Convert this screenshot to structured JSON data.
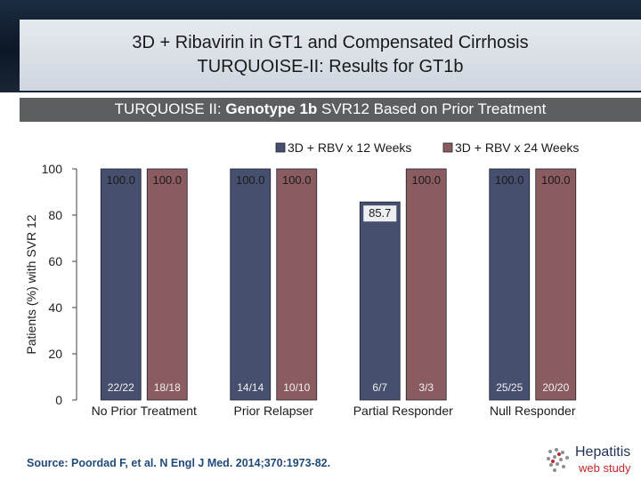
{
  "header": {
    "title_line1": "3D + Ribavirin in GT1 and Compensated Cirrhosis",
    "title_line2": "TURQUOISE-II: Results for GT1b"
  },
  "subtitle": {
    "prefix": "TURQUOISE II: ",
    "bold": "Genotype 1b",
    "suffix": " SVR12 Based on Prior Treatment"
  },
  "chart_data": {
    "type": "bar",
    "title": "TURQUOISE II: Genotype 1b SVR12 Based on Prior Treatment",
    "xlabel": "",
    "ylabel": "Patients (%) with SVR 12",
    "ylim": [
      0,
      100
    ],
    "yticks": [
      0,
      20,
      40,
      60,
      80,
      100
    ],
    "categories": [
      "No Prior Treatment",
      "Prior Relapser",
      "Partial Responder",
      "Null Responder"
    ],
    "series": [
      {
        "name": "3D + RBV x 12 Weeks",
        "color": "#474f6e",
        "values": [
          100.0,
          100.0,
          85.7,
          100.0
        ],
        "labels": [
          "100.0",
          "100.0",
          "85.7",
          "100.0"
        ],
        "counts": [
          "22/22",
          "14/14",
          "6/7",
          "25/25"
        ]
      },
      {
        "name": "3D + RBV x 24 Weeks",
        "color": "#8a5c5f",
        "values": [
          100.0,
          100.0,
          100.0,
          100.0
        ],
        "labels": [
          "100.0",
          "100.0",
          "100.0",
          "100.0"
        ],
        "counts": [
          "18/18",
          "10/10",
          "3/3",
          "20/20"
        ]
      }
    ],
    "legend_position": "top-right"
  },
  "source": "Source: Poordad F, et al. N Engl J Med. 2014;370:1973-82.",
  "logo": {
    "line1": "Hepatitis",
    "line2": "web study"
  }
}
